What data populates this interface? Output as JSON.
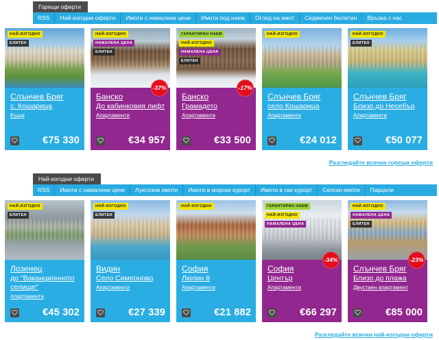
{
  "theme": {
    "accent_cyan": "#29abe2",
    "card_cyan": "#2aade3",
    "card_purple": "#92278f",
    "badge_yellow": "#f3e600",
    "badge_green": "#9ed43a",
    "badge_dark": "#262626",
    "discount_red": "#e10e1e",
    "tab_bg": "#4b4b4b",
    "link_color": "#29abe2"
  },
  "sections": [
    {
      "tab": "Горещи оферти",
      "nav": [
        "RSS",
        "Най-изгодни оферти",
        "Имоти с намалени цени",
        "Имоти под наем",
        "Оглед на имот",
        "Седмичен бюлетин",
        "Връзка с нас"
      ],
      "see_all": "Разгледайте всички горещи оферти",
      "cards": [
        {
          "title": "Слънчев Бряг",
          "subtitle": "с. Кошарица",
          "category": "Къщи",
          "price": "€75 330",
          "color": "cyan",
          "discount": null,
          "photo": "villa-pool",
          "badges": [
            {
              "label": "НАЙ-ИЗГОДНО",
              "type": "best"
            },
            {
              "label": "ЕЛИТЕН",
              "type": "elite"
            }
          ]
        },
        {
          "title": "Банско",
          "subtitle": "До кабинковия лифт",
          "category": "Апартаменти",
          "price": "€34 957",
          "color": "purple",
          "discount": "-37%",
          "photo": "winter-resort",
          "badges": [
            {
              "label": "НАЙ-ИЗГОДНО",
              "type": "best"
            },
            {
              "label": "НАМАЛЕНА ЦЕНА",
              "type": "reduced"
            },
            {
              "label": "ЕЛИТЕН",
              "type": "elite"
            }
          ]
        },
        {
          "title": "Банско",
          "subtitle": "Грамадето",
          "category": "Апартаменти",
          "price": "€33 500",
          "color": "purple",
          "discount": "-17%",
          "photo": "winter-apartments",
          "badges": [
            {
              "label": "ГАРАНТИРАН НАЕМ",
              "type": "rent"
            },
            {
              "label": "НАЙ-ИЗГОДНО",
              "type": "best"
            },
            {
              "label": "НАМАЛЕНА ЦЕНА",
              "type": "reduced"
            },
            {
              "label": "ЕЛИТЕН",
              "type": "elite"
            }
          ]
        },
        {
          "title": "Слънчев Бряг",
          "subtitle": "село Кошарица",
          "category": "Апартаменти",
          "price": "€24 012",
          "color": "cyan",
          "discount": null,
          "photo": "seaside-render",
          "badges": [
            {
              "label": "НАЙ-ИЗГОДНО",
              "type": "best"
            }
          ]
        },
        {
          "title": "Слънчев Бряг",
          "subtitle": "Близо до Несебър",
          "category": "Апартаменти",
          "price": "€50 077",
          "color": "cyan",
          "discount": null,
          "photo": "pool-complex",
          "badges": [
            {
              "label": "НАЙ-ИЗГОДНО",
              "type": "best"
            },
            {
              "label": "ЕЛИТЕН",
              "type": "elite"
            }
          ]
        }
      ]
    },
    {
      "tab": "Най-изгодни оферти",
      "nav": [
        "RSS",
        "Имоти с намалени цени",
        "Луксозни имоти",
        "Имоти в морски курорт",
        "Имоти в ски курорт",
        "Селски имоти",
        "Парцели"
      ],
      "see_all": "Разгледайте всички най-изгодни оферти",
      "cards": [
        {
          "title": "Лозенец",
          "subtitle": "до \"Ваканционното селище\"",
          "category": "Апартаменти",
          "price": "€45 302",
          "color": "cyan",
          "discount": null,
          "photo": "parking-render",
          "badges": [
            {
              "label": "НАЙ-ИЗГОДНО",
              "type": "best"
            },
            {
              "label": "ЕЛИТЕН",
              "type": "elite"
            }
          ]
        },
        {
          "title": "Видин",
          "subtitle": "Село Симеоново",
          "category": "Апартаменти",
          "price": "€27 339",
          "color": "cyan",
          "discount": null,
          "photo": "pool-building",
          "badges": [
            {
              "label": "НАЙ-ИЗГОДНО",
              "type": "best"
            },
            {
              "label": "ЕЛИТЕН",
              "type": "elite"
            }
          ]
        },
        {
          "title": "София",
          "subtitle": "Люлин 8",
          "category": "Апартаменти",
          "price": "€21 882",
          "color": "cyan",
          "discount": null,
          "photo": "city-building",
          "badges": [
            {
              "label": "НАЙ-ИЗГОДНО",
              "type": "best"
            }
          ]
        },
        {
          "title": "София",
          "subtitle": "Център",
          "category": "Апартаменти",
          "price": "€66 297",
          "color": "purple",
          "discount": "-34%",
          "photo": "white-building",
          "badges": [
            {
              "label": "ГАРАНТИРАН НАЕМ",
              "type": "rent"
            },
            {
              "label": "НАЙ-ИЗГОДНО",
              "type": "best"
            },
            {
              "label": "НАМАЛЕНА ЦЕНА",
              "type": "reduced"
            }
          ]
        },
        {
          "title": "Слънчев Бряг",
          "subtitle": "Близо до плажа",
          "category": "Двустаен апартамент",
          "price": "€85 000",
          "color": "purple",
          "discount": "-23%",
          "photo": "glass-building",
          "badges": [
            {
              "label": "НАЙ-ИЗГОДНО",
              "type": "best"
            },
            {
              "label": "НАМАЛЕНА ЦЕНА",
              "type": "reduced"
            },
            {
              "label": "ЕЛИТЕН",
              "type": "elite"
            }
          ]
        }
      ]
    }
  ]
}
